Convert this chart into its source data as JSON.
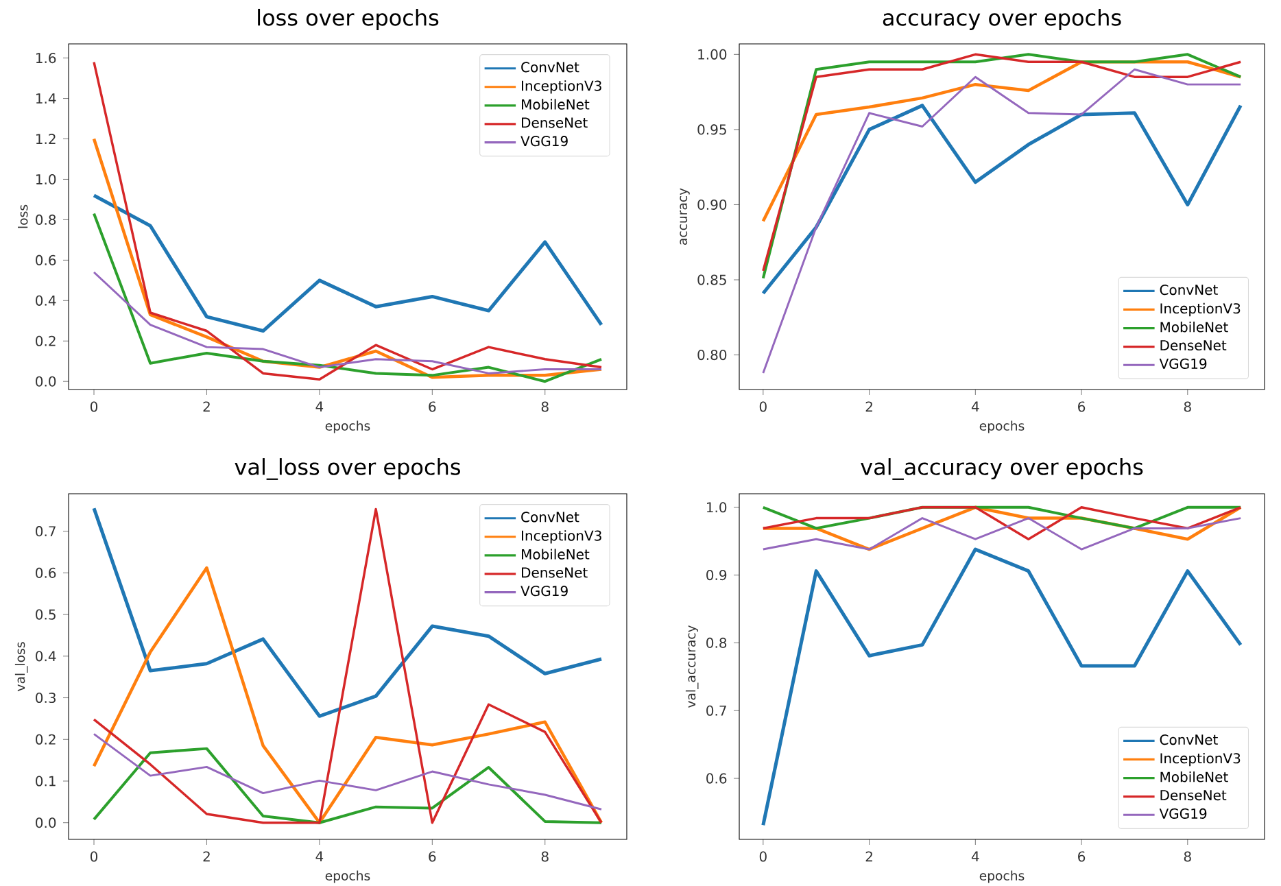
{
  "chart_data": [
    {
      "type": "line",
      "title": "loss over epochs",
      "xlabel": "epochs",
      "ylabel": "loss",
      "x": [
        0,
        1,
        2,
        3,
        4,
        5,
        6,
        7,
        8,
        9
      ],
      "xlim": [
        -0.45,
        9.45
      ],
      "ylim": [
        -0.04,
        1.67
      ],
      "xticks": [
        0,
        2,
        4,
        6,
        8
      ],
      "yticks": [
        {
          "value": 0,
          "label": "0.0"
        },
        {
          "value": 0.2,
          "label": "0.2"
        },
        {
          "value": 0.4,
          "label": "0.4"
        },
        {
          "value": 0.6,
          "label": "0.6"
        },
        {
          "value": 0.8,
          "label": "0.8"
        },
        {
          "value": 1.0,
          "label": "1.0"
        },
        {
          "value": 1.2,
          "label": "1.2"
        },
        {
          "value": 1.4,
          "label": "1.4"
        },
        {
          "value": 1.6,
          "label": "1.6"
        }
      ],
      "legend": "top right",
      "series": [
        {
          "name": "ConvNet",
          "color": "#1f77b4",
          "values": [
            0.92,
            0.77,
            0.32,
            0.25,
            0.5,
            0.37,
            0.42,
            0.35,
            0.69,
            0.28
          ]
        },
        {
          "name": "InceptionV3",
          "color": "#ff7f0e",
          "values": [
            1.2,
            0.33,
            0.22,
            0.1,
            0.07,
            0.15,
            0.02,
            0.03,
            0.03,
            0.06
          ]
        },
        {
          "name": "MobileNet",
          "color": "#2ca02c",
          "values": [
            0.83,
            0.09,
            0.14,
            0.1,
            0.08,
            0.04,
            0.03,
            0.07,
            0.0,
            0.11
          ]
        },
        {
          "name": "DenseNet",
          "color": "#d62728",
          "values": [
            1.58,
            0.34,
            0.25,
            0.04,
            0.01,
            0.18,
            0.06,
            0.17,
            0.11,
            0.07
          ]
        },
        {
          "name": "VGG19",
          "color": "#9467bd",
          "values": [
            0.54,
            0.28,
            0.17,
            0.16,
            0.07,
            0.11,
            0.1,
            0.04,
            0.06,
            0.06
          ]
        }
      ]
    },
    {
      "type": "line",
      "title": "accuracy over epochs",
      "xlabel": "epochs",
      "ylabel": "accuracy",
      "x": [
        0,
        1,
        2,
        3,
        4,
        5,
        6,
        7,
        8,
        9
      ],
      "xlim": [
        -0.45,
        9.45
      ],
      "ylim": [
        0.777,
        1.007
      ],
      "xticks": [
        0,
        2,
        4,
        6,
        8
      ],
      "yticks": [
        {
          "value": 0.8,
          "label": "0.80"
        },
        {
          "value": 0.85,
          "label": "0.85"
        },
        {
          "value": 0.9,
          "label": "0.90"
        },
        {
          "value": 0.95,
          "label": "0.95"
        },
        {
          "value": 1.0,
          "label": "1.00"
        }
      ],
      "legend": "bottom right",
      "series": [
        {
          "name": "ConvNet",
          "color": "#1f77b4",
          "values": [
            0.841,
            0.885,
            0.95,
            0.966,
            0.915,
            0.94,
            0.96,
            0.961,
            0.9,
            0.966
          ]
        },
        {
          "name": "InceptionV3",
          "color": "#ff7f0e",
          "values": [
            0.889,
            0.96,
            0.965,
            0.971,
            0.98,
            0.976,
            0.995,
            0.995,
            0.995,
            0.985
          ]
        },
        {
          "name": "MobileNet",
          "color": "#2ca02c",
          "values": [
            0.851,
            0.99,
            0.995,
            0.995,
            0.995,
            1.0,
            0.995,
            0.995,
            1.0,
            0.985
          ]
        },
        {
          "name": "DenseNet",
          "color": "#d62728",
          "values": [
            0.856,
            0.985,
            0.99,
            0.99,
            1.0,
            0.995,
            0.995,
            0.985,
            0.985,
            0.995
          ]
        },
        {
          "name": "VGG19",
          "color": "#9467bd",
          "values": [
            0.788,
            0.885,
            0.961,
            0.952,
            0.985,
            0.961,
            0.96,
            0.99,
            0.98,
            0.98
          ]
        }
      ]
    },
    {
      "type": "line",
      "title": "val_loss over epochs",
      "xlabel": "epochs",
      "ylabel": "val_loss",
      "x": [
        0,
        1,
        2,
        3,
        4,
        5,
        6,
        7,
        8,
        9
      ],
      "xlim": [
        -0.45,
        9.45
      ],
      "ylim": [
        -0.04,
        0.79
      ],
      "xticks": [
        0,
        2,
        4,
        6,
        8
      ],
      "yticks": [
        {
          "value": 0,
          "label": "0.0"
        },
        {
          "value": 0.1,
          "label": "0.1"
        },
        {
          "value": 0.2,
          "label": "0.2"
        },
        {
          "value": 0.3,
          "label": "0.3"
        },
        {
          "value": 0.4,
          "label": "0.4"
        },
        {
          "value": 0.5,
          "label": "0.5"
        },
        {
          "value": 0.6,
          "label": "0.6"
        },
        {
          "value": 0.7,
          "label": "0.7"
        }
      ],
      "legend": "top right",
      "series": [
        {
          "name": "ConvNet",
          "color": "#1f77b4",
          "values": [
            0.755,
            0.365,
            0.382,
            0.441,
            0.256,
            0.304,
            0.472,
            0.448,
            0.358,
            0.393
          ]
        },
        {
          "name": "InceptionV3",
          "color": "#ff7f0e",
          "values": [
            0.136,
            0.41,
            0.612,
            0.185,
            0.0,
            0.205,
            0.187,
            0.213,
            0.242,
            0.0
          ]
        },
        {
          "name": "MobileNet",
          "color": "#2ca02c",
          "values": [
            0.008,
            0.168,
            0.178,
            0.016,
            0.0,
            0.038,
            0.035,
            0.133,
            0.003,
            0.0
          ]
        },
        {
          "name": "DenseNet",
          "color": "#d62728",
          "values": [
            0.248,
            0.14,
            0.021,
            0.0,
            0.0,
            0.753,
            0.0,
            0.284,
            0.218,
            0.0
          ]
        },
        {
          "name": "VGG19",
          "color": "#9467bd",
          "values": [
            0.213,
            0.113,
            0.134,
            0.071,
            0.101,
            0.078,
            0.123,
            0.092,
            0.067,
            0.032
          ]
        }
      ]
    },
    {
      "type": "line",
      "title": "val_accuracy over epochs",
      "xlabel": "epochs",
      "ylabel": "val_accuracy",
      "x": [
        0,
        1,
        2,
        3,
        4,
        5,
        6,
        7,
        8,
        9
      ],
      "xlim": [
        -0.45,
        9.45
      ],
      "ylim": [
        0.51,
        1.02
      ],
      "xticks": [
        0,
        2,
        4,
        6,
        8
      ],
      "yticks": [
        {
          "value": 0.6,
          "label": "0.6"
        },
        {
          "value": 0.7,
          "label": "0.7"
        },
        {
          "value": 0.8,
          "label": "0.8"
        },
        {
          "value": 0.9,
          "label": "0.9"
        },
        {
          "value": 1.0,
          "label": "1.0"
        }
      ],
      "legend": "bottom right",
      "series": [
        {
          "name": "ConvNet",
          "color": "#1f77b4",
          "values": [
            0.531,
            0.906,
            0.781,
            0.797,
            0.938,
            0.906,
            0.766,
            0.766,
            0.906,
            0.797
          ]
        },
        {
          "name": "InceptionV3",
          "color": "#ff7f0e",
          "values": [
            0.969,
            0.969,
            0.938,
            0.969,
            1.0,
            0.984,
            0.984,
            0.969,
            0.953,
            1.0
          ]
        },
        {
          "name": "MobileNet",
          "color": "#2ca02c",
          "values": [
            1.0,
            0.969,
            0.984,
            1.0,
            1.0,
            1.0,
            0.984,
            0.969,
            1.0,
            1.0
          ]
        },
        {
          "name": "DenseNet",
          "color": "#d62728",
          "values": [
            0.969,
            0.984,
            0.984,
            1.0,
            1.0,
            0.953,
            1.0,
            0.984,
            0.969,
            1.0
          ]
        },
        {
          "name": "VGG19",
          "color": "#9467bd",
          "values": [
            0.938,
            0.953,
            0.938,
            0.984,
            0.953,
            0.984,
            0.938,
            0.969,
            0.969,
            0.984
          ]
        }
      ]
    }
  ]
}
